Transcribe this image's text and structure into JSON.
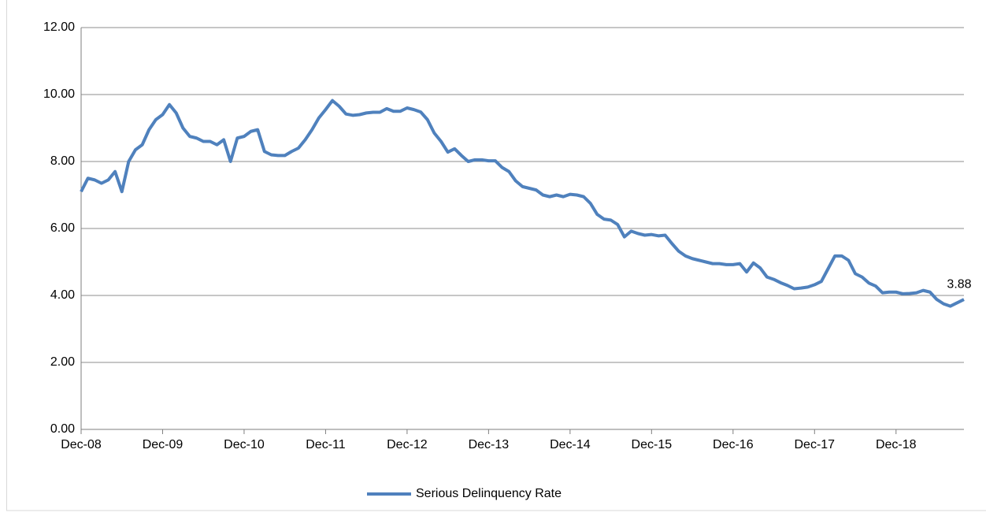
{
  "chart_data": {
    "type": "line",
    "categories": [
      "Dec-08",
      null,
      null,
      null,
      null,
      null,
      null,
      null,
      null,
      null,
      null,
      null,
      "Dec-09",
      null,
      null,
      null,
      null,
      null,
      null,
      null,
      null,
      null,
      null,
      null,
      "Dec-10",
      null,
      null,
      null,
      null,
      null,
      null,
      null,
      null,
      null,
      null,
      null,
      "Dec-11",
      null,
      null,
      null,
      null,
      null,
      null,
      null,
      null,
      null,
      null,
      null,
      "Dec-12",
      null,
      null,
      null,
      null,
      null,
      null,
      null,
      null,
      null,
      null,
      null,
      "Dec-13",
      null,
      null,
      null,
      null,
      null,
      null,
      null,
      null,
      null,
      null,
      null,
      "Dec-14",
      null,
      null,
      null,
      null,
      null,
      null,
      null,
      null,
      null,
      null,
      null,
      "Dec-15",
      null,
      null,
      null,
      null,
      null,
      null,
      null,
      null,
      null,
      null,
      null,
      "Dec-16",
      null,
      null,
      null,
      null,
      null,
      null,
      null,
      null,
      null,
      null,
      null,
      "Dec-17",
      null,
      null,
      null,
      null,
      null,
      null,
      null,
      null,
      null,
      null,
      null,
      "Dec-18",
      null,
      null,
      null,
      null,
      null,
      null,
      null,
      null,
      null,
      null
    ],
    "series": [
      {
        "name": "Serious Delinquency Rate",
        "color": "#4f81bd",
        "values": [
          7.1,
          7.5,
          7.45,
          7.35,
          7.45,
          7.7,
          7.1,
          8.0,
          8.35,
          8.5,
          8.95,
          9.25,
          9.4,
          9.7,
          9.45,
          9.0,
          8.75,
          8.7,
          8.6,
          8.6,
          8.5,
          8.65,
          8.0,
          8.7,
          8.75,
          8.9,
          8.95,
          8.3,
          8.2,
          8.18,
          8.18,
          8.3,
          8.4,
          8.65,
          8.95,
          9.3,
          9.55,
          9.82,
          9.65,
          9.42,
          9.38,
          9.4,
          9.45,
          9.47,
          9.47,
          9.58,
          9.5,
          9.5,
          9.6,
          9.55,
          9.48,
          9.25,
          8.85,
          8.6,
          8.28,
          8.38,
          8.18,
          8.0,
          8.05,
          8.05,
          8.02,
          8.02,
          7.82,
          7.7,
          7.42,
          7.25,
          7.2,
          7.15,
          7.0,
          6.95,
          7.0,
          6.95,
          7.02,
          7.0,
          6.95,
          6.75,
          6.42,
          6.28,
          6.25,
          6.12,
          5.75,
          5.92,
          5.85,
          5.8,
          5.82,
          5.78,
          5.8,
          5.55,
          5.32,
          5.18,
          5.1,
          5.05,
          5.0,
          4.95,
          4.95,
          4.92,
          4.92,
          4.95,
          4.7,
          4.97,
          4.82,
          4.55,
          4.48,
          4.38,
          4.3,
          4.2,
          4.22,
          4.25,
          4.32,
          4.42,
          4.8,
          5.18,
          5.18,
          5.05,
          4.65,
          4.55,
          4.37,
          4.28,
          4.08,
          4.1,
          4.1,
          4.05,
          4.06,
          4.08,
          4.15,
          4.1,
          3.88,
          3.75,
          3.68,
          3.78,
          3.88
        ]
      }
    ],
    "ylim": [
      0,
      12
    ],
    "yticks": [
      {
        "value": 0,
        "label": "0.00"
      },
      {
        "value": 2,
        "label": "2.00"
      },
      {
        "value": 4,
        "label": "4.00"
      },
      {
        "value": 6,
        "label": "6.00"
      },
      {
        "value": 8,
        "label": "8.00"
      },
      {
        "value": 10,
        "label": "10.00"
      },
      {
        "value": 12,
        "label": "12.00"
      }
    ],
    "grid": true,
    "legend": "bottom"
  }
}
